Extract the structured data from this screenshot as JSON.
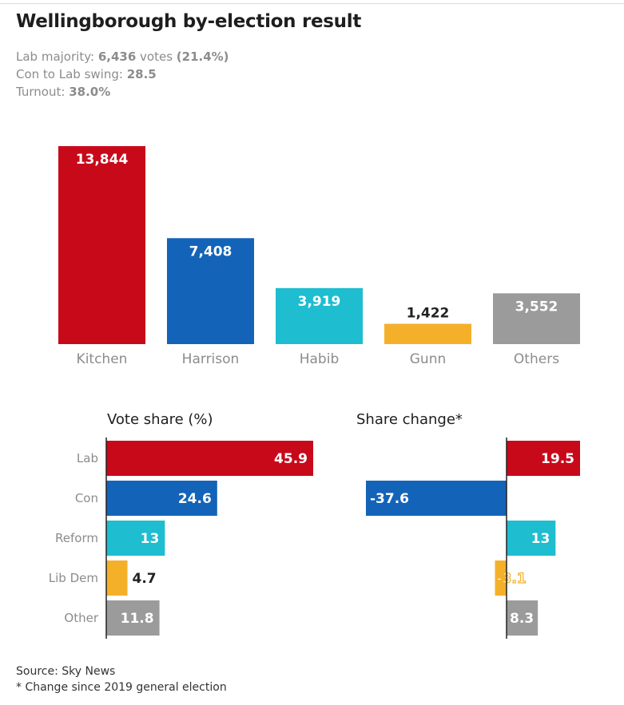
{
  "header": {
    "title": "Wellingborough by-election result",
    "majority_label": "Lab majority: ",
    "majority_value": "6,436",
    "majority_suffix": " votes ",
    "majority_pct": "(21.4%)",
    "swing_label": "Con to Lab swing: ",
    "swing_value": "28.5",
    "turnout_label": "Turnout: ",
    "turnout_value": "38.0%"
  },
  "colors": {
    "lab": "#c8091a",
    "con": "#1363b8",
    "reform": "#1ebdd0",
    "libdem": "#f5b02a",
    "other": "#9b9b9b",
    "axis": "#222222",
    "label_grey": "#8c8c8c"
  },
  "chart_data": [
    {
      "type": "bar",
      "title": "",
      "categories": [
        "Kitchen",
        "Harrison",
        "Habib",
        "Gunn",
        "Others"
      ],
      "values": [
        13844,
        7408,
        3919,
        1422,
        3552
      ],
      "value_labels": [
        "13,844",
        "7,408",
        "3,919",
        "1,422",
        "3,552"
      ],
      "series_colors": [
        "lab",
        "con",
        "reform",
        "libdem",
        "other"
      ],
      "ylim": [
        0,
        13844
      ],
      "xlabel": "",
      "ylabel": ""
    },
    {
      "type": "bar",
      "orientation": "horizontal",
      "title": "Vote share (%)",
      "categories": [
        "Lab",
        "Con",
        "Reform",
        "Lib Dem",
        "Other"
      ],
      "values": [
        45.9,
        24.6,
        13,
        4.7,
        11.8
      ],
      "value_labels": [
        "45.9",
        "24.6",
        "13",
        "4.7",
        "11.8"
      ],
      "series_colors": [
        "lab",
        "con",
        "reform",
        "libdem",
        "other"
      ],
      "xlim": [
        0,
        45.9
      ]
    },
    {
      "type": "bar",
      "orientation": "horizontal",
      "title": "Share change*",
      "categories": [
        "Lab",
        "Con",
        "Reform",
        "Lib Dem",
        "Other"
      ],
      "values": [
        19.5,
        -37.6,
        13,
        -3.1,
        8.3
      ],
      "value_labels": [
        "19.5",
        "-37.6",
        "13",
        "-3.1",
        "8.3"
      ],
      "series_colors": [
        "lab",
        "con",
        "reform",
        "libdem",
        "other"
      ],
      "xlim": [
        -37.6,
        19.5
      ]
    }
  ],
  "footer": {
    "source": "Source: Sky News",
    "note": "* Change since 2019 general election"
  }
}
